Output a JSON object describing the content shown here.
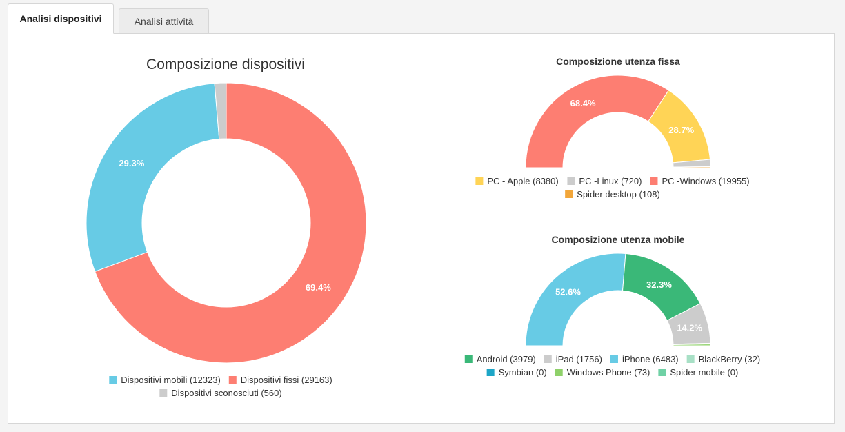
{
  "tabs": [
    {
      "label": "Analisi dispositivi",
      "active": true
    },
    {
      "label": "Analisi attività",
      "active": false
    }
  ],
  "chart_data": [
    {
      "type": "pie",
      "variant": "donut",
      "title": "Composizione dispositivi",
      "series": [
        {
          "name": "Dispositivi fissi",
          "value": 29163,
          "label": "69.4%",
          "color": "#fd7e72"
        },
        {
          "name": "Dispositivi mobili",
          "value": 12323,
          "label": "29.3%",
          "color": "#67cbe5"
        },
        {
          "name": "Dispositivi sconosciuti",
          "value": 560,
          "label": "",
          "color": "#cccccc"
        }
      ],
      "legend": [
        {
          "text": "Dispositivi mobili (12323)",
          "color": "#67cbe5"
        },
        {
          "text": "Dispositivi fissi (29163)",
          "color": "#fd7e72"
        },
        {
          "text": "Dispositivi sconosciuti (560)",
          "color": "#cccccc"
        }
      ]
    },
    {
      "type": "pie",
      "variant": "semi-donut",
      "title": "Composizione utenza fissa",
      "series": [
        {
          "name": "PC -Windows",
          "value": 19955,
          "label": "68.4%",
          "color": "#fd7e72"
        },
        {
          "name": "PC - Apple",
          "value": 8380,
          "label": "28.7%",
          "color": "#ffd456"
        },
        {
          "name": "PC -Linux",
          "value": 720,
          "label": "",
          "color": "#cccccc"
        },
        {
          "name": "Spider desktop",
          "value": 108,
          "label": "",
          "color": "#f2a63a"
        }
      ],
      "legend": [
        {
          "text": "PC - Apple (8380)",
          "color": "#ffd456"
        },
        {
          "text": "PC -Linux (720)",
          "color": "#cccccc"
        },
        {
          "text": "PC -Windows (19955)",
          "color": "#fd7e72"
        },
        {
          "text": "Spider desktop (108)",
          "color": "#f2a63a"
        }
      ]
    },
    {
      "type": "pie",
      "variant": "semi-donut",
      "title": "Composizione utenza mobile",
      "series": [
        {
          "name": "iPhone",
          "value": 6483,
          "label": "52.6%",
          "color": "#67cbe5"
        },
        {
          "name": "Android",
          "value": 3979,
          "label": "32.3%",
          "color": "#3ab878"
        },
        {
          "name": "iPad",
          "value": 1756,
          "label": "14.2%",
          "color": "#cccccc"
        },
        {
          "name": "BlackBerry",
          "value": 32,
          "label": "",
          "color": "#a8e0c6"
        },
        {
          "name": "Windows Phone",
          "value": 73,
          "label": "",
          "color": "#8fd16a"
        },
        {
          "name": "Symbian",
          "value": 0,
          "label": "",
          "color": "#1da6c7"
        },
        {
          "name": "Spider mobile",
          "value": 0,
          "label": "",
          "color": "#6fd1a5"
        }
      ],
      "legend": [
        {
          "text": "Android (3979)",
          "color": "#3ab878"
        },
        {
          "text": "iPad (1756)",
          "color": "#cccccc"
        },
        {
          "text": "iPhone (6483)",
          "color": "#67cbe5"
        },
        {
          "text": "BlackBerry (32)",
          "color": "#a8e0c6"
        },
        {
          "text": "Symbian (0)",
          "color": "#1da6c7"
        },
        {
          "text": "Windows Phone (73)",
          "color": "#8fd16a"
        },
        {
          "text": "Spider mobile (0)",
          "color": "#6fd1a5"
        }
      ]
    }
  ]
}
